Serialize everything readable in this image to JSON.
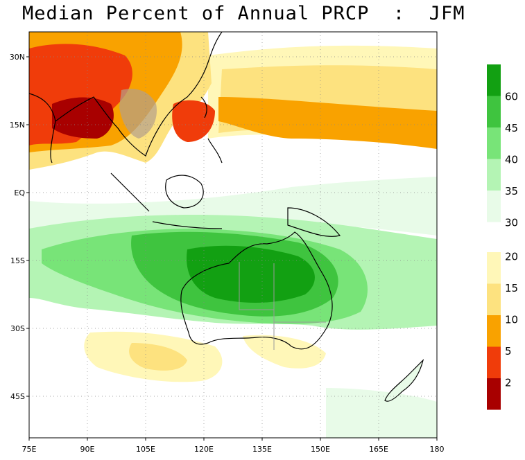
{
  "title": "Median Percent of Annual PRCP  :  JFM",
  "map": {
    "lon_range": [
      75,
      180
    ],
    "lat_range": [
      -52,
      34
    ],
    "x_ticks": [
      "75E",
      "90E",
      "105E",
      "120E",
      "135E",
      "150E",
      "165E",
      "180"
    ],
    "y_ticks": [
      "30N",
      "15N",
      "EQ",
      "15S",
      "30S",
      "45S"
    ]
  },
  "colorbar": {
    "upper": {
      "labels": [
        "60",
        "45",
        "40",
        "35",
        "30"
      ],
      "colors": [
        "#12a012",
        "#3fc43f",
        "#78e478",
        "#b4f4b4",
        "#e8fbe8"
      ]
    },
    "lower": {
      "labels": [
        "20",
        "15",
        "10",
        "5",
        "2"
      ],
      "colors": [
        "#fff7b8",
        "#fde27f",
        "#f9a200",
        "#f03c0a",
        "#a80000"
      ]
    }
  },
  "colors": {
    "ocean": "#ffffff",
    "dryland_border": "#9a9a9a",
    "coast": "#000000"
  }
}
